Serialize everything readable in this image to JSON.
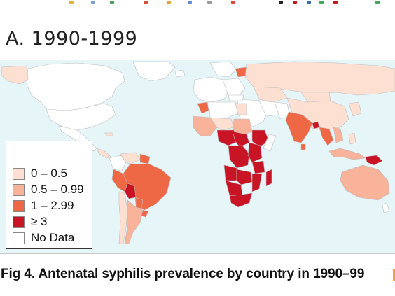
{
  "figure": {
    "panel_title": "A. 1990-1999",
    "caption": "Fig 4.  Antenatal syphilis prevalence by country in 1990–99"
  },
  "legend": {
    "items": [
      {
        "label": "0 – 0.5",
        "color": "#fde0d2"
      },
      {
        "label": "0.5 – 0.99",
        "color": "#f8b39a"
      },
      {
        "label": "1 – 2.99",
        "color": "#ef6846"
      },
      {
        "label": "≥  3",
        "color": "#c81424"
      },
      {
        "label": "No Data",
        "color": "#ffffff"
      }
    ]
  },
  "map": {
    "ocean_color": "#e5f5f8",
    "border_color": "#bdbdbd"
  }
}
